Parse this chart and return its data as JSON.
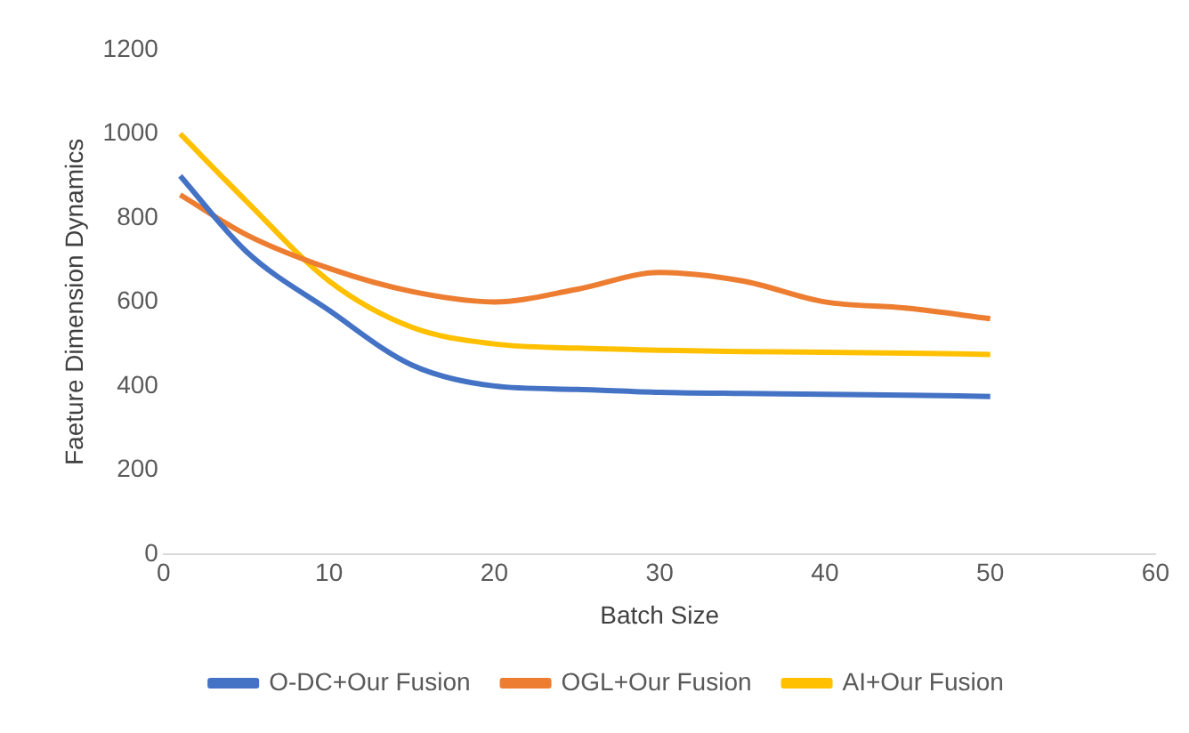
{
  "chart_data": {
    "type": "line",
    "xlabel": "Batch Size",
    "ylabel": "Faeture Dimension Dynamics",
    "x": [
      1,
      5,
      10,
      15,
      20,
      25,
      30,
      35,
      40,
      45,
      50
    ],
    "xlim": [
      0,
      60
    ],
    "xticks": [
      0,
      10,
      20,
      30,
      40,
      50,
      60
    ],
    "ylim": [
      0,
      1200
    ],
    "yticks": [
      0,
      200,
      400,
      600,
      800,
      1000,
      1200
    ],
    "grid": false,
    "legend": "bottom",
    "marker": "none",
    "line_style": "solid",
    "series": [
      {
        "name": "O-DC+Our Fusion",
        "color": "#4472c4",
        "values": [
          900,
          720,
          580,
          450,
          400,
          392,
          385,
          382,
          380,
          378,
          375
        ]
      },
      {
        "name": "OGL+Our Fusion",
        "color": "#ed7d31",
        "values": [
          855,
          760,
          680,
          625,
          600,
          630,
          670,
          650,
          600,
          585,
          560
        ]
      },
      {
        "name": "AI+Our Fusion",
        "color": "#ffc000",
        "values": [
          1000,
          840,
          650,
          540,
          500,
          490,
          485,
          482,
          480,
          478,
          475
        ]
      }
    ]
  }
}
